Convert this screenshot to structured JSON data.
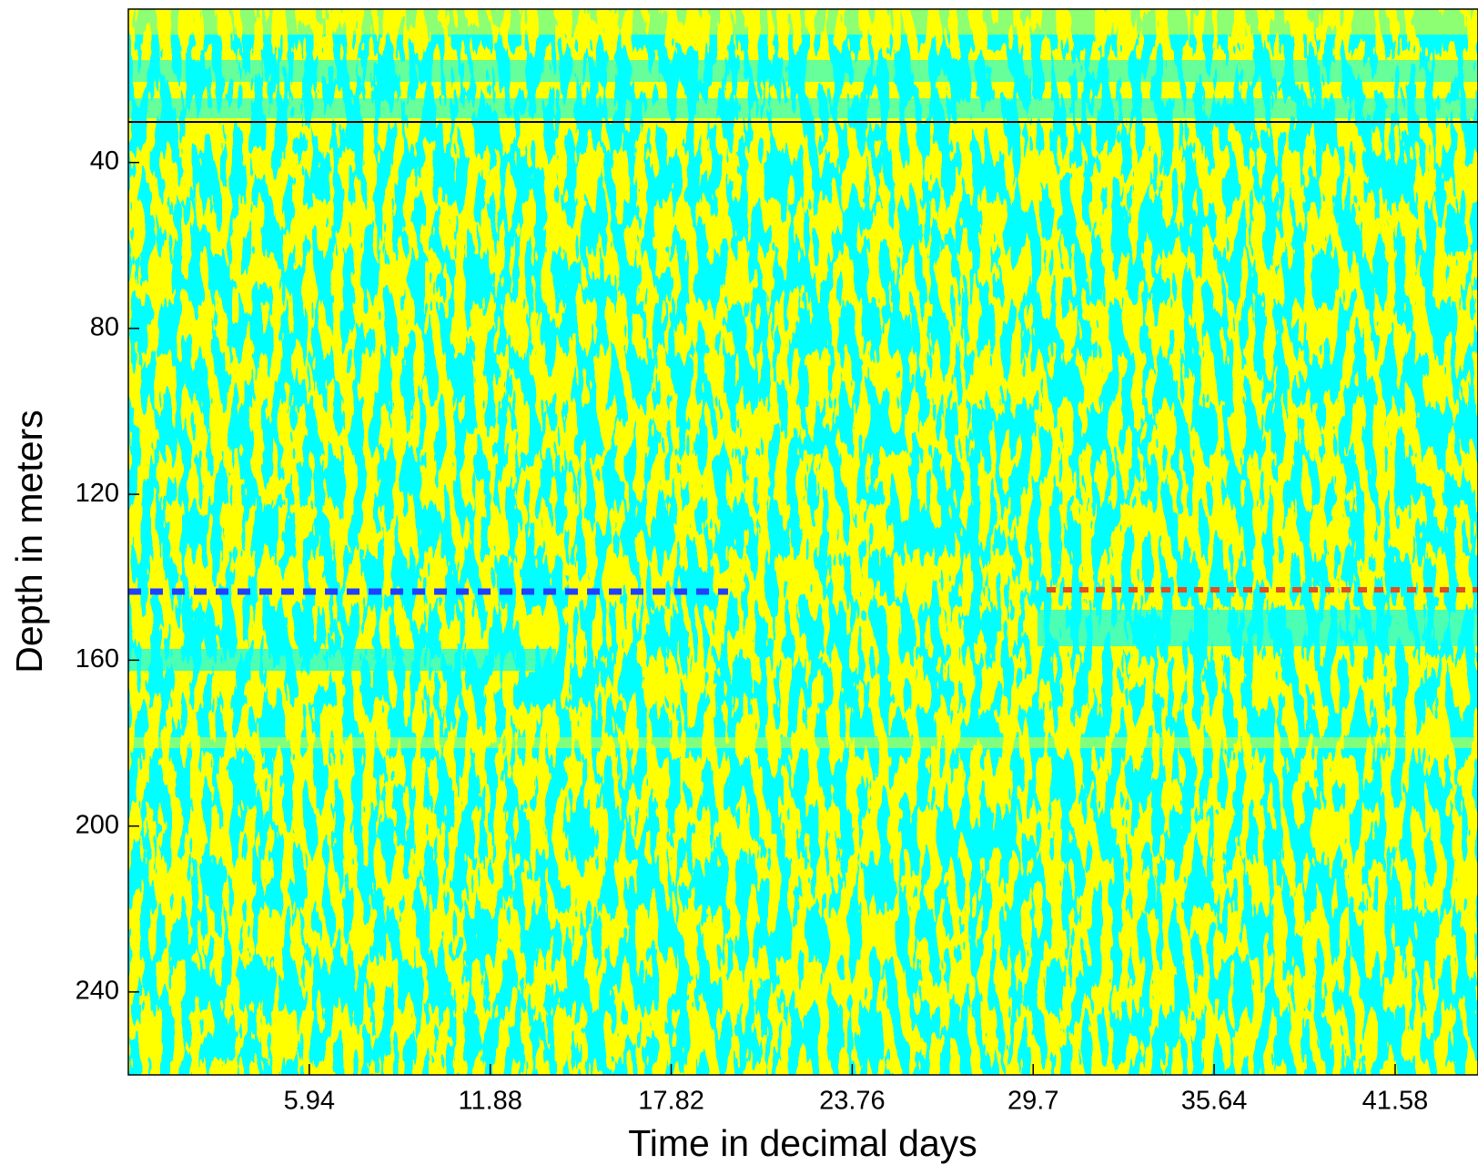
{
  "chart_data": {
    "type": "contour",
    "x_label": "Time in decimal days",
    "y_label": "Depth in meters",
    "xlim": [
      0,
      44.3
    ],
    "xticks": [
      5.94,
      11.88,
      17.82,
      23.76,
      29.7,
      35.64,
      41.58
    ],
    "ylim": [
      3,
      260
    ],
    "yticks": [
      40,
      80,
      120,
      160,
      200,
      240
    ],
    "y_reversed": true,
    "colors": [
      "#00ffff",
      "#ffff00"
    ]
  }
}
